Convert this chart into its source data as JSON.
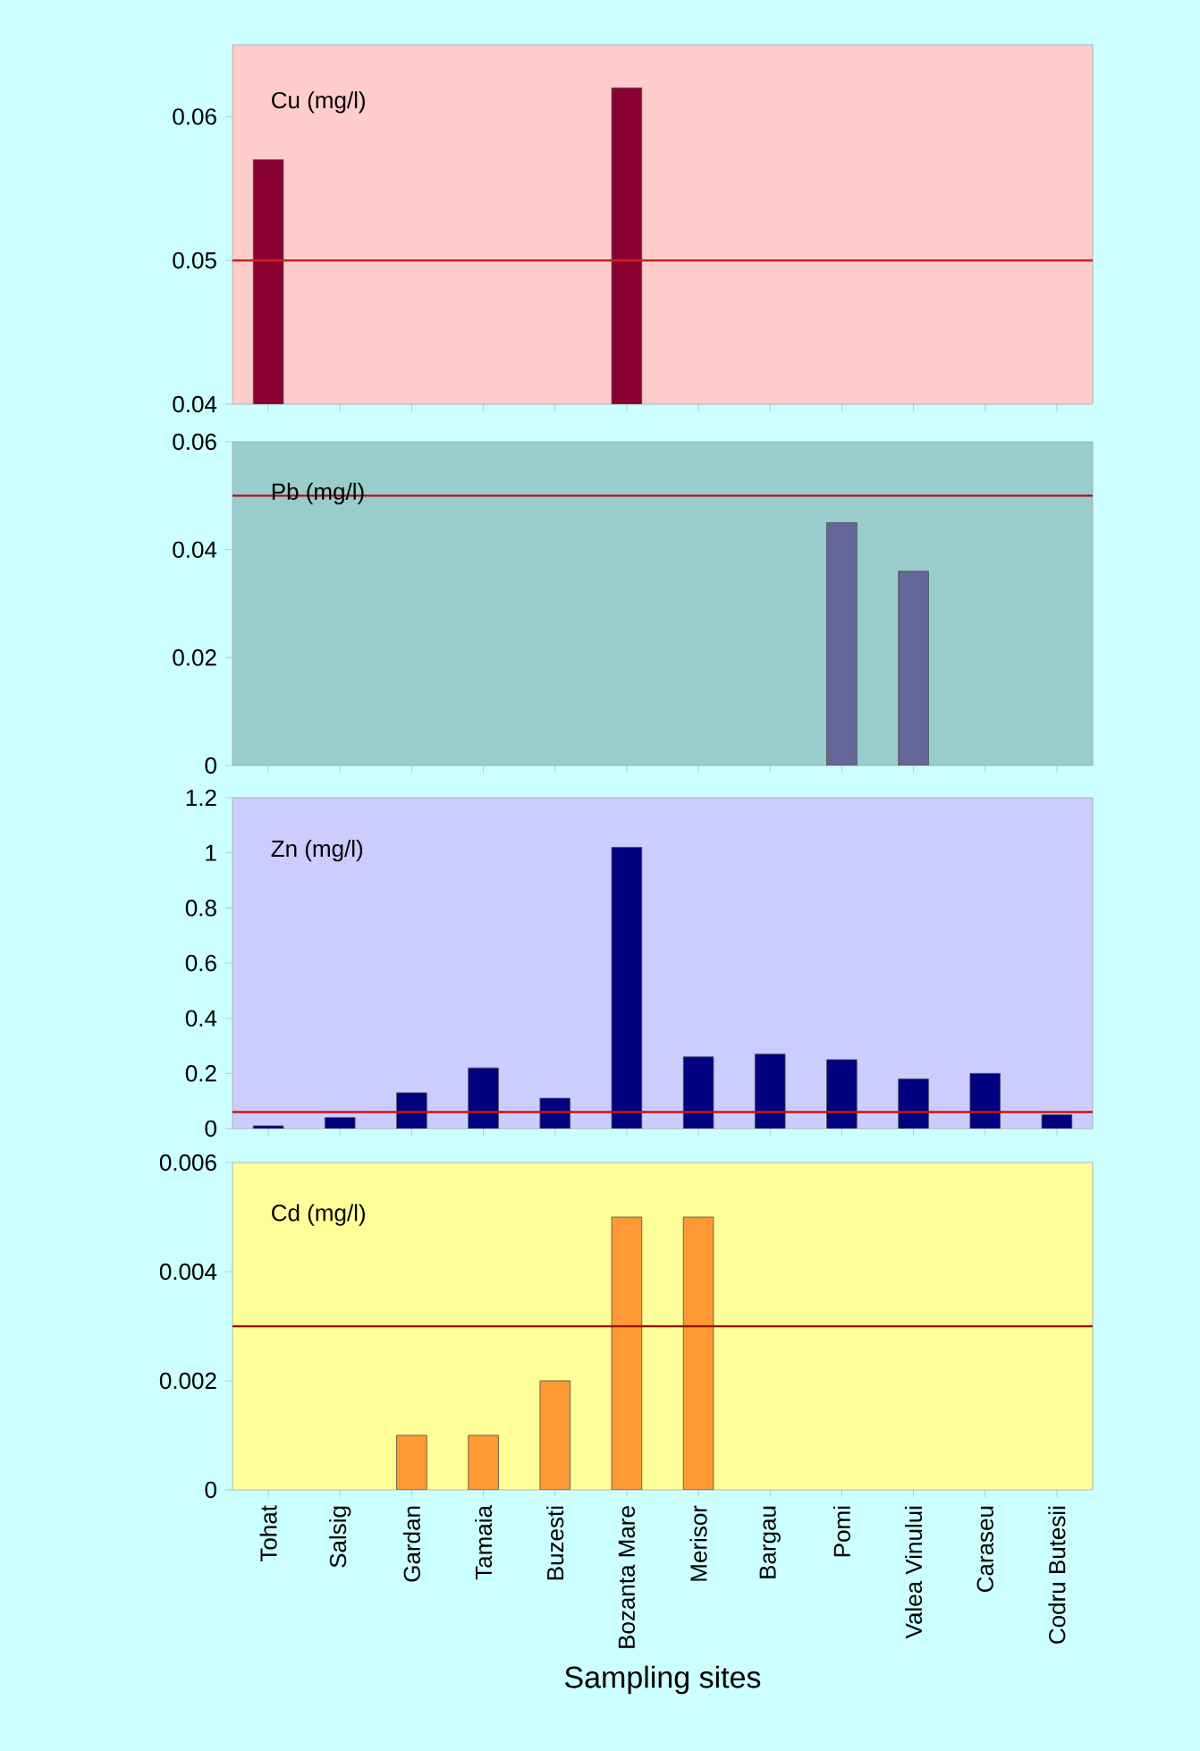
{
  "chart_data": [
    {
      "type": "bar",
      "title": "Cu   (mg/l)",
      "categories": [
        null,
        null,
        null,
        null,
        null,
        null,
        null,
        null,
        null,
        null,
        null,
        null
      ],
      "values": [
        0.057,
        null,
        null,
        null,
        null,
        0.062,
        null,
        null,
        null,
        null,
        null,
        null
      ],
      "color": "#8b0033",
      "ylim": [
        0.04,
        0.065
      ],
      "yticks": [
        0.04,
        0.05,
        0.06
      ],
      "tick_labels": "y",
      "ref_lines": [
        {
          "axis": "y",
          "value": 0.05,
          "color": "#cc2222"
        }
      ]
    },
    {
      "type": "bar",
      "title": "Pb   (mg/l)",
      "categories": [
        null,
        null,
        null,
        null,
        null,
        null,
        null,
        null,
        null,
        null,
        null,
        null
      ],
      "values": [
        null,
        null,
        null,
        null,
        null,
        null,
        null,
        null,
        0.045,
        0.036,
        null,
        null
      ],
      "color": "#666699",
      "ylim": [
        0,
        0.06
      ],
      "yticks": [
        0,
        0.02,
        0.04,
        0.06
      ],
      "tick_labels": "y",
      "ref_lines": [
        {
          "axis": "y",
          "value": 0.05,
          "color": "#aa2222"
        }
      ]
    },
    {
      "type": "bar",
      "title": "Zn   (mg/l)",
      "categories": [
        null,
        null,
        null,
        null,
        null,
        null,
        null,
        null,
        null,
        null,
        null,
        null
      ],
      "values": [
        0.01,
        0.04,
        0.13,
        0.22,
        0.11,
        1.02,
        0.26,
        0.27,
        0.25,
        0.18,
        0.2,
        0.05
      ],
      "color": "#000080",
      "ylim": [
        0,
        1.2
      ],
      "yticks": [
        0,
        0.2,
        0.4,
        0.6,
        0.8,
        1,
        1.2
      ],
      "tick_labels": "y",
      "ref_lines": [
        {
          "axis": "y",
          "value": 0.06,
          "color": "#cc1111"
        }
      ]
    },
    {
      "type": "bar",
      "title": "Cd   (mg/l)",
      "xlabel": "Sampling sites",
      "categories": [
        "Tohat",
        "Salsig",
        "Gardan",
        "Tamaia",
        "Buzesti",
        "Bozanta Mare",
        "Merisor",
        "Bargau",
        "Pomi",
        "Valea Vinului",
        "Caraseu",
        "Codru Butesii"
      ],
      "values": [
        null,
        null,
        0.001,
        0.001,
        0.002,
        0.005,
        0.005,
        null,
        null,
        null,
        null,
        null
      ],
      "color": "#ff9933",
      "ylim": [
        0,
        0.006
      ],
      "yticks": [
        0,
        0.002,
        0.004,
        0.006
      ],
      "ref_lines": [
        {
          "axis": "y",
          "value": 0.003,
          "color": "#991111"
        }
      ]
    }
  ]
}
